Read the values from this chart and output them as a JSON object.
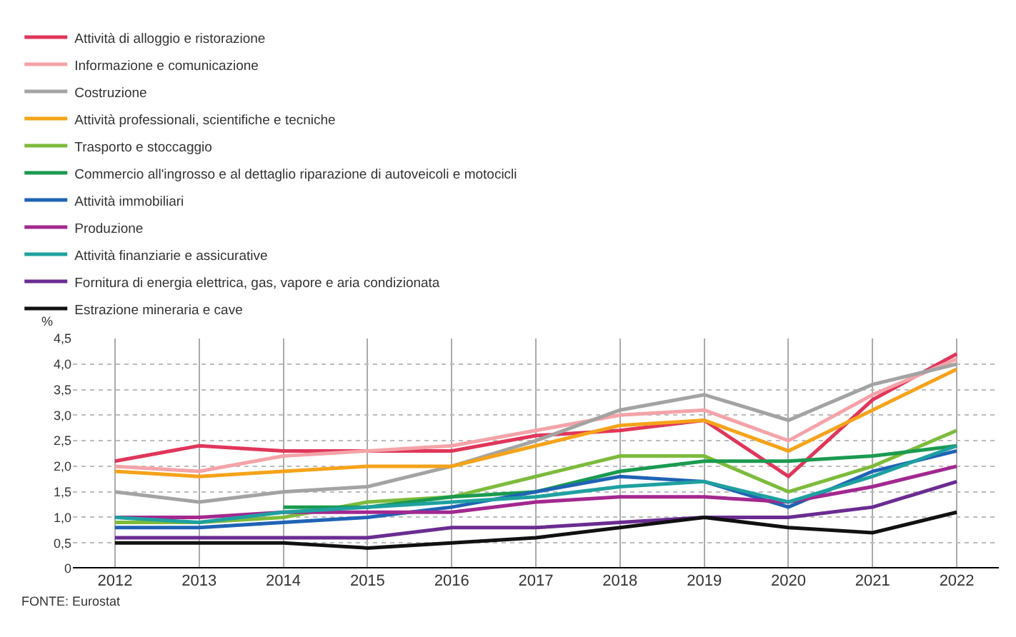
{
  "chart_data": {
    "type": "line",
    "ylabel": "%",
    "categories": [
      "2012",
      "2013",
      "2014",
      "2015",
      "2016",
      "2017",
      "2018",
      "2019",
      "2020",
      "2021",
      "2022"
    ],
    "series": [
      {
        "name": "Attività di alloggio e ristorazione",
        "color": "#e0365a",
        "values": [
          2.1,
          2.4,
          2.3,
          2.3,
          2.3,
          2.6,
          2.7,
          2.9,
          1.8,
          3.3,
          4.2
        ]
      },
      {
        "name": "Informazione e comunicazione",
        "color": "#f4a3a8",
        "values": [
          2.0,
          1.9,
          2.2,
          2.3,
          2.4,
          2.7,
          3.0,
          3.1,
          2.5,
          3.4,
          4.1
        ]
      },
      {
        "name": "Costruzione",
        "color": "#a3a3a3",
        "values": [
          1.5,
          1.3,
          1.5,
          1.6,
          2.0,
          2.5,
          3.1,
          3.4,
          2.9,
          3.6,
          4.0
        ]
      },
      {
        "name": "Attività professionali, scientifiche e tecniche",
        "color": "#f5a31a",
        "values": [
          1.9,
          1.8,
          1.9,
          2.0,
          2.0,
          2.4,
          2.8,
          2.9,
          2.3,
          3.1,
          3.9
        ]
      },
      {
        "name": "Trasporto e stoccaggio",
        "color": "#7dbb3c",
        "values": [
          0.9,
          0.9,
          1.0,
          1.3,
          1.4,
          1.8,
          2.2,
          2.2,
          1.5,
          2.0,
          2.7
        ]
      },
      {
        "name": "Commercio all'ingrosso e al dettaglio riparazione di autoveicoli e motocicli",
        "color": "#1a9a50",
        "values": [
          null,
          null,
          1.2,
          1.2,
          1.4,
          1.5,
          1.9,
          2.1,
          2.1,
          2.2,
          2.4
        ]
      },
      {
        "name": "Attività immobiliari",
        "color": "#1f63b5",
        "values": [
          0.8,
          0.8,
          0.9,
          1.0,
          1.2,
          1.5,
          1.8,
          1.7,
          1.2,
          1.9,
          2.3
        ]
      },
      {
        "name": "Produzione",
        "color": "#a3288f",
        "values": [
          1.0,
          1.0,
          1.1,
          1.1,
          1.1,
          1.3,
          1.4,
          1.4,
          1.3,
          1.6,
          2.0
        ]
      },
      {
        "name": "Attività finanziarie e assicurative",
        "color": "#1fa0a0",
        "values": [
          1.0,
          0.9,
          1.1,
          1.2,
          1.3,
          1.4,
          1.6,
          1.7,
          1.3,
          1.8,
          2.4
        ]
      },
      {
        "name": "Fornitura di energia elettrica, gas, vapore e aria condizionata",
        "color": "#6a2c91",
        "values": [
          0.6,
          0.6,
          0.6,
          0.6,
          0.8,
          0.8,
          0.9,
          1.0,
          1.0,
          1.2,
          1.7
        ]
      },
      {
        "name": "Estrazione mineraria e cave",
        "color": "#111111",
        "values": [
          0.5,
          0.5,
          0.5,
          0.4,
          0.5,
          0.6,
          0.8,
          1.0,
          0.8,
          0.7,
          1.1
        ]
      }
    ],
    "ylim": [
      0,
      4.5
    ],
    "yticks": [
      0,
      {
        "value": 0.5,
        "label": "0,5"
      },
      {
        "value": 1,
        "label": "1,0"
      },
      {
        "value": 1.5,
        "label": "1,5"
      },
      {
        "value": 2,
        "label": "2,0"
      },
      {
        "value": 2.5,
        "label": "2,5"
      },
      {
        "value": 3,
        "label": "3,0"
      },
      {
        "value": 3.5,
        "label": "3,5"
      },
      {
        "value": 4,
        "label": "4,0"
      },
      {
        "value": 4.5,
        "label": "4,5"
      }
    ],
    "grid": true,
    "legend": "top",
    "marker": "none",
    "line_style": "solid",
    "annotations": [
      "FONTE: Eurostat"
    ]
  }
}
